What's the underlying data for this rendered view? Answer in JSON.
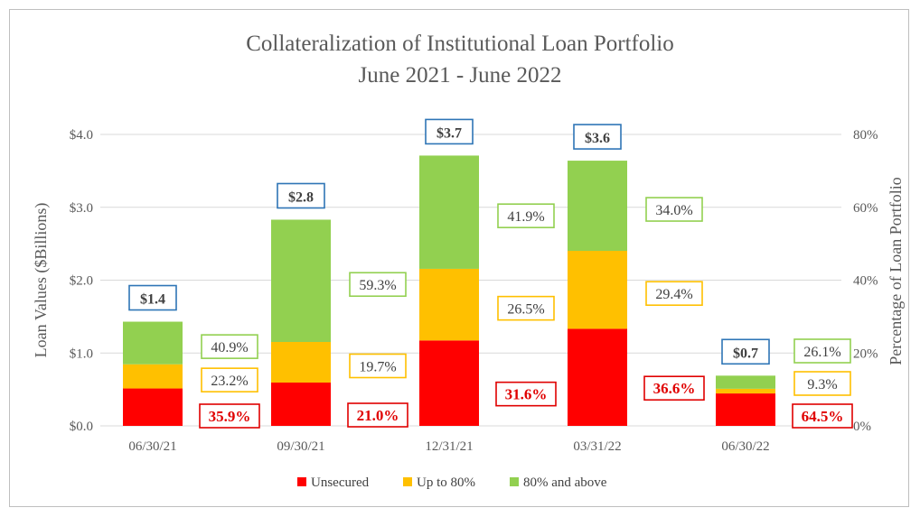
{
  "chart_data": {
    "type": "bar",
    "stacked": true,
    "title": [
      "Collateralization  of Institutional  Loan Portfolio",
      "June 2021 - June 2022"
    ],
    "categories": [
      "06/30/21",
      "09/30/21",
      "12/31/21",
      "03/31/22",
      "06/30/22"
    ],
    "ylabel": "Loan Values ($Billions)",
    "y2label": "Percentage of Loan Portfolio",
    "ylim": [
      0,
      4
    ],
    "y2lim": [
      0,
      80
    ],
    "yticks": [
      "$0.0",
      "$1.0",
      "$2.0",
      "$3.0",
      "$4.0"
    ],
    "y2ticks": [
      "0%",
      "20%",
      "40%",
      "60%",
      "80%"
    ],
    "totals": [
      1.43,
      2.83,
      3.71,
      3.64,
      0.69
    ],
    "total_labels": [
      "$1.4",
      "$2.8",
      "$3.7",
      "$3.6",
      "$0.7"
    ],
    "series": [
      {
        "name": "Unsecured",
        "color": "#ff0000",
        "label_color": "#e00000",
        "pct": [
          35.9,
          21.0,
          31.6,
          36.6,
          64.5
        ],
        "labels": [
          "35.9%",
          "21.0%",
          "31.6%",
          "36.6%",
          "64.5%"
        ]
      },
      {
        "name": "Up to 80%",
        "color": "#ffc000",
        "label_color": "#ffc000",
        "pct": [
          23.2,
          19.7,
          26.5,
          29.4,
          9.3
        ],
        "labels": [
          "23.2%",
          "19.7%",
          "26.5%",
          "29.4%",
          "9.3%"
        ]
      },
      {
        "name": "80% and above",
        "color": "#92d050",
        "label_color": "#92d050",
        "pct": [
          40.9,
          59.3,
          41.9,
          34.0,
          26.1
        ],
        "labels": [
          "40.9%",
          "59.3%",
          "41.9%",
          "34.0%",
          "26.1%"
        ]
      }
    ],
    "total_label_color": "#2e75b6",
    "grid": true,
    "legend": "bottom"
  }
}
